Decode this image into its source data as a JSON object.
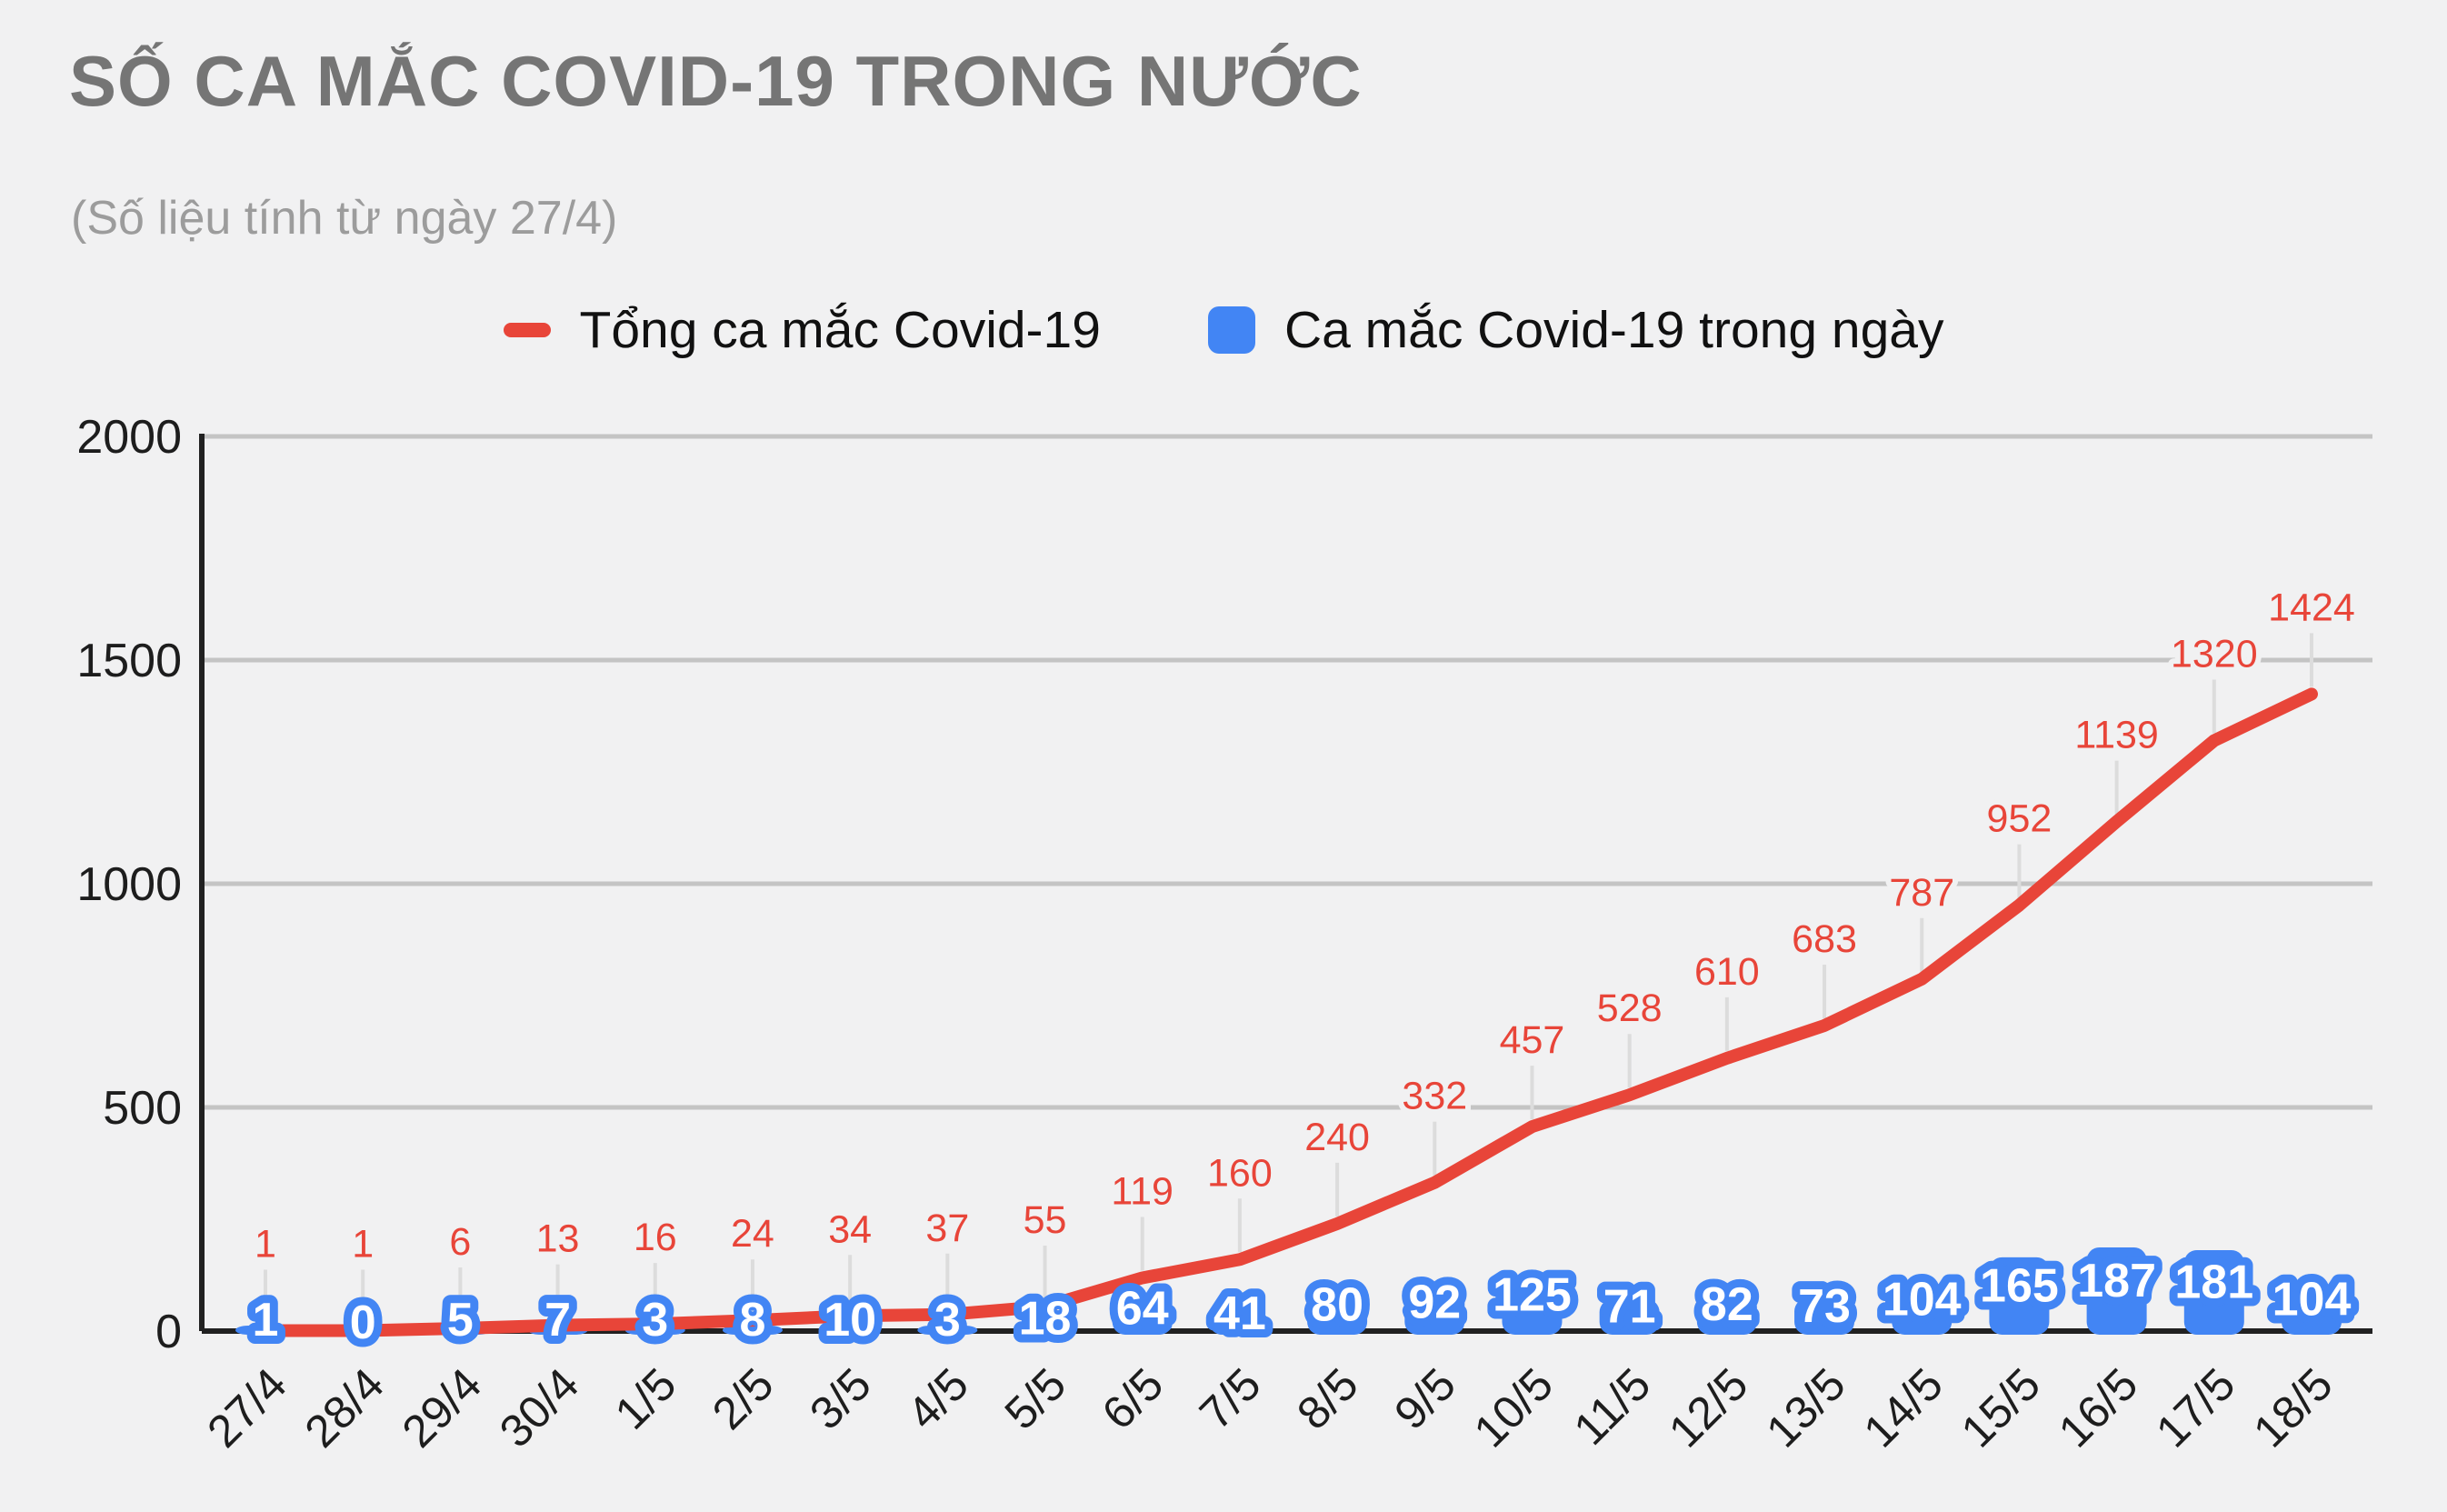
{
  "header": {
    "title": "SỐ CA MẮC COVID-19 TRONG NƯỚC",
    "subtitle": "(Số liệu tính từ ngày 27/4)"
  },
  "chart_data": {
    "type": "combo",
    "title": "SỐ CA MẮC COVID-19 TRONG NƯỚC",
    "subtitle": "(Số liệu tính từ ngày 27/4)",
    "categories": [
      "27/4",
      "28/4",
      "29/4",
      "30/4",
      "1/5",
      "2/5",
      "3/5",
      "4/5",
      "5/5",
      "6/5",
      "7/5",
      "8/5",
      "9/5",
      "10/5",
      "11/5",
      "12/5",
      "13/5",
      "14/5",
      "15/5",
      "16/5",
      "17/5",
      "18/5"
    ],
    "series": [
      {
        "name": "Tổng ca mắc Covid-19",
        "type": "line",
        "color": "#e84539",
        "values": [
          1,
          1,
          6,
          13,
          16,
          24,
          34,
          37,
          55,
          119,
          160,
          240,
          332,
          457,
          528,
          610,
          683,
          787,
          952,
          1139,
          1320,
          1424
        ]
      },
      {
        "name": "Ca mắc Covid-19 trong ngày",
        "type": "bar",
        "color": "#4285f4",
        "values": [
          1,
          0,
          5,
          7,
          3,
          8,
          10,
          3,
          18,
          64,
          41,
          80,
          92,
          125,
          71,
          82,
          73,
          104,
          165,
          187,
          181,
          104
        ]
      }
    ],
    "xlabel": "",
    "ylabel": "",
    "ylim": [
      0,
      2000
    ],
    "yticks": [
      0,
      500,
      1000,
      1500,
      2000
    ],
    "legend_position": "top",
    "grid": "horizontal",
    "colors": {
      "background": "#f1f1f2",
      "grid": "#c4c4c4",
      "axis": "#212121",
      "leader_line": "#dcdcdc",
      "tick_text": "#1d1d1d",
      "bar_label_text": "#ffffff",
      "title_text": "#757575",
      "subtitle_text": "#9c9c9c"
    }
  }
}
